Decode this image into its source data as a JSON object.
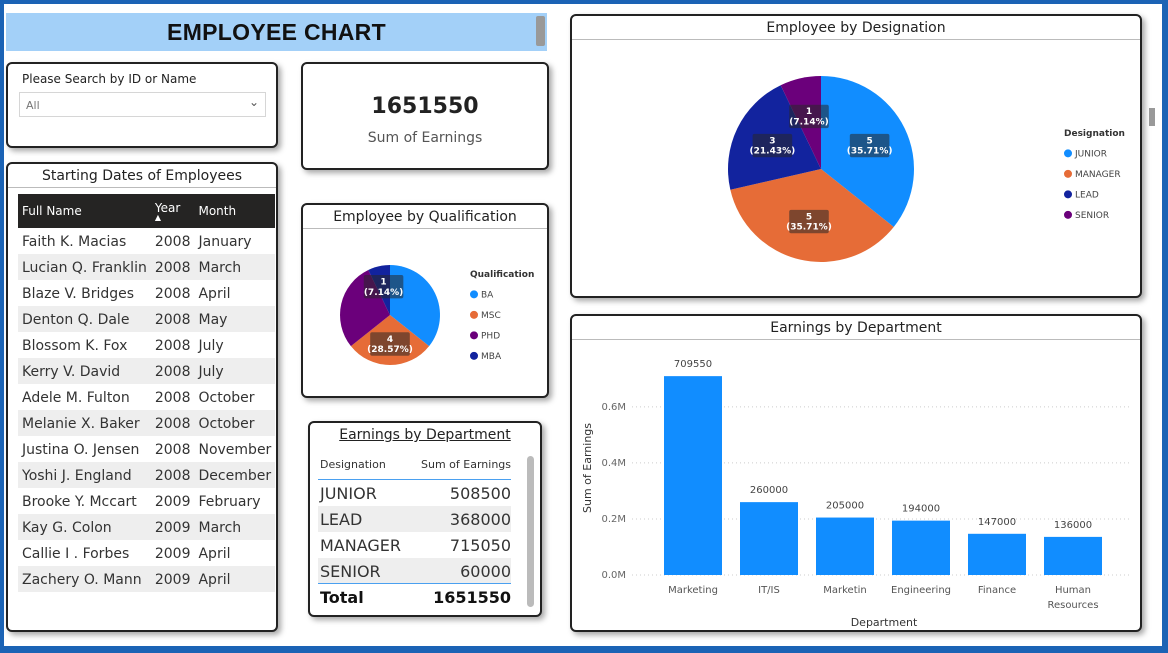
{
  "header": {
    "title": "EMPLOYEE CHART"
  },
  "search": {
    "label": "Please Search by ID or Name",
    "selected": "All"
  },
  "kpi": {
    "value": "1651550",
    "label": "Sum of Earnings"
  },
  "dates": {
    "title": "Starting Dates of Employees",
    "columns": [
      "Full Name",
      "Year",
      "Month"
    ],
    "rows": [
      [
        "Faith K. Macias",
        "2008",
        "January"
      ],
      [
        "Lucian Q. Franklin",
        "2008",
        "March"
      ],
      [
        "Blaze V. Bridges",
        "2008",
        "April"
      ],
      [
        "Denton Q. Dale",
        "2008",
        "May"
      ],
      [
        "Blossom K. Fox",
        "2008",
        "July"
      ],
      [
        "Kerry V. David",
        "2008",
        "July"
      ],
      [
        "Adele M. Fulton",
        "2008",
        "October"
      ],
      [
        "Melanie X. Baker",
        "2008",
        "October"
      ],
      [
        "Justina O. Jensen",
        "2008",
        "November"
      ],
      [
        "Yoshi J. England",
        "2008",
        "December"
      ],
      [
        "Brooke Y. Mccart",
        "2009",
        "February"
      ],
      [
        "Kay G. Colon",
        "2009",
        "March"
      ],
      [
        "Callie I . Forbes",
        "2009",
        "April"
      ],
      [
        "Zachery O. Mann",
        "2009",
        "April"
      ]
    ]
  },
  "earnings_table": {
    "title": "Earnings by Department",
    "columns": [
      "Designation",
      "Sum of Earnings"
    ],
    "rows": [
      [
        "JUNIOR",
        "508500"
      ],
      [
        "LEAD",
        "368000"
      ],
      [
        "MANAGER",
        "715050"
      ],
      [
        "SENIOR",
        "60000"
      ]
    ],
    "total_label": "Total",
    "total_value": "1651550"
  },
  "colors": {
    "blue": "#118dff",
    "orange": "#e66c37",
    "purple": "#6b007b",
    "navy": "#12239e",
    "bar": "#118dff"
  },
  "chart_data": [
    {
      "id": "qualification",
      "type": "pie",
      "title": "Employee by Qualification",
      "legend_title": "Qualification",
      "legend_position": "right",
      "slices": [
        {
          "label": "BA",
          "value": 5,
          "color": "#118dff"
        },
        {
          "label": "MSC",
          "value": 4,
          "color": "#e66c37"
        },
        {
          "label": "PHD",
          "value": 4,
          "color": "#6b007b"
        },
        {
          "label": "MBA",
          "value": 1,
          "color": "#12239e"
        }
      ],
      "data_labels": [
        {
          "slice": "MSC",
          "text": [
            "4",
            "(28.57%)"
          ]
        },
        {
          "slice": "MBA",
          "text": [
            "1",
            "(7.14%)"
          ]
        }
      ]
    },
    {
      "id": "designation",
      "type": "pie",
      "title": "Employee by Designation",
      "legend_title": "Designation",
      "legend_position": "right",
      "slices": [
        {
          "label": "JUNIOR",
          "value": 5,
          "color": "#118dff"
        },
        {
          "label": "MANAGER",
          "value": 5,
          "color": "#e66c37"
        },
        {
          "label": "LEAD",
          "value": 3,
          "color": "#12239e"
        },
        {
          "label": "SENIOR",
          "value": 1,
          "color": "#6b007b"
        }
      ],
      "data_labels": [
        {
          "slice": "JUNIOR",
          "text": [
            "5",
            "(35.71%)"
          ]
        },
        {
          "slice": "MANAGER",
          "text": [
            "5",
            "(35.71%)"
          ]
        },
        {
          "slice": "LEAD",
          "text": [
            "3",
            "(21.43%)"
          ]
        },
        {
          "slice": "SENIOR",
          "text": [
            "1",
            "(7.14%)"
          ]
        }
      ]
    },
    {
      "id": "department",
      "type": "bar",
      "title": "Earnings by Department",
      "xlabel": "Department",
      "ylabel": "Sum of Earnings",
      "categories": [
        "Marketing",
        "IT/IS",
        "Marketin",
        "Engineering",
        "Finance",
        "Human Resources"
      ],
      "values": [
        709550,
        260000,
        205000,
        194000,
        147000,
        136000
      ],
      "yticks": [
        0,
        200000,
        400000,
        600000
      ],
      "ytick_labels": [
        "0.0M",
        "0.2M",
        "0.4M",
        "0.6M"
      ],
      "ylim": [
        0,
        760000
      ],
      "grid": true
    }
  ]
}
